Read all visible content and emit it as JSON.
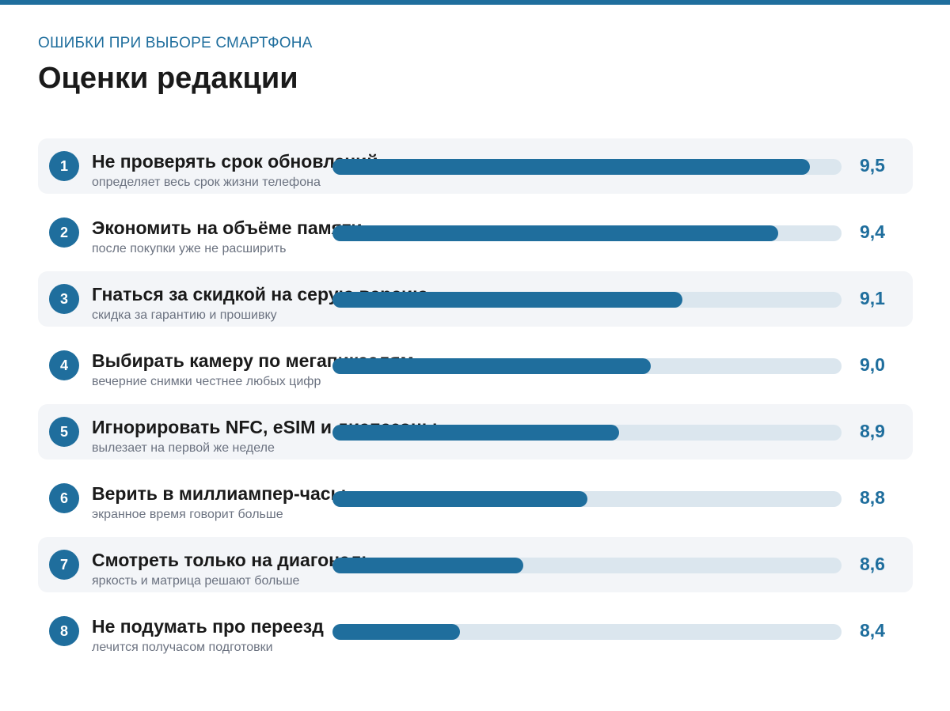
{
  "header": {
    "kicker": "ОШИБКИ ПРИ ВЫБОРЕ СМАРТФОНА",
    "title": "Оценки редакции"
  },
  "colors": {
    "accent": "#1f6e9d",
    "track": "#dbe6ee",
    "row_shade": "#f3f5f8"
  },
  "chart_data": {
    "type": "bar",
    "orientation": "horizontal",
    "title": "Оценки редакции",
    "xlim": [
      8.0,
      9.6
    ],
    "rows": [
      {
        "rank": "1",
        "label": "Не проверять срок обновлений",
        "sublabel": "определяет весь срок жизни телефона",
        "value": 9.5,
        "value_label": "9,5"
      },
      {
        "rank": "2",
        "label": "Экономить на объёме памяти",
        "sublabel": "после покупки уже не расширить",
        "value": 9.4,
        "value_label": "9,4"
      },
      {
        "rank": "3",
        "label": "Гнаться за скидкой на серую версию",
        "sublabel": "скидка за гарантию и прошивку",
        "value": 9.1,
        "value_label": "9,1"
      },
      {
        "rank": "4",
        "label": "Выбирать камеру по мегапикселям",
        "sublabel": "вечерние снимки честнее любых цифр",
        "value": 9.0,
        "value_label": "9,0"
      },
      {
        "rank": "5",
        "label": "Игнорировать NFC, eSIM и диапазоны",
        "sublabel": "вылезает на первой же неделе",
        "value": 8.9,
        "value_label": "8,9"
      },
      {
        "rank": "6",
        "label": "Верить в миллиампер-часы",
        "sublabel": "экранное время говорит больше",
        "value": 8.8,
        "value_label": "8,8"
      },
      {
        "rank": "7",
        "label": "Смотреть только на диагональ",
        "sublabel": "яркость и матрица решают больше",
        "value": 8.6,
        "value_label": "8,6"
      },
      {
        "rank": "8",
        "label": "Не подумать про переезд",
        "sublabel": "лечится получасом подготовки",
        "value": 8.4,
        "value_label": "8,4"
      }
    ]
  }
}
